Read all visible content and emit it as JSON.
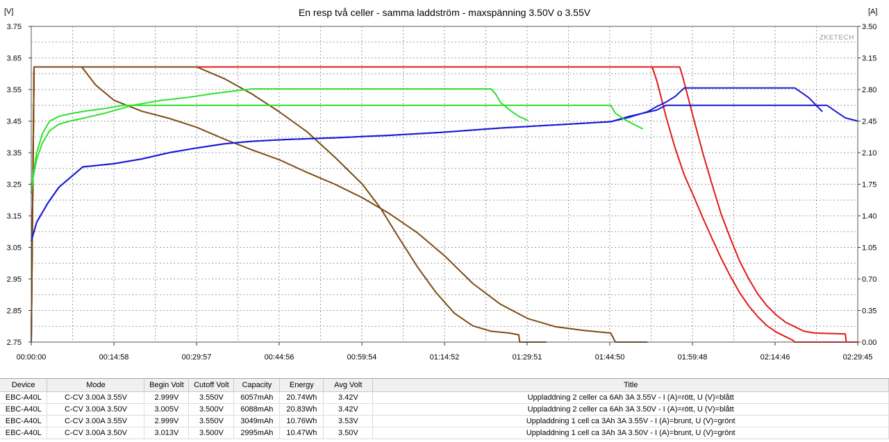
{
  "chart_data": {
    "type": "line",
    "title": "En resp två celler - samma laddström - maxspänning 3.50V o 3.55V",
    "y_left_unit": "[V]",
    "y_right_unit": "[A]",
    "watermark": "ZKETECH",
    "ylim_left": [
      2.75,
      3.75
    ],
    "ylim_right": [
      0,
      3.5
    ],
    "xlim_seconds": [
      0,
      8985
    ],
    "grid": true,
    "y_left_ticks": [
      "3.75",
      "3.65",
      "3.55",
      "3.45",
      "3.35",
      "3.25",
      "3.15",
      "3.05",
      "2.95",
      "2.85",
      "2.75"
    ],
    "y_right_ticks": [
      "3.50",
      "3.15",
      "2.80",
      "2.45",
      "2.10",
      "1.75",
      "1.40",
      "1.05",
      "0.70",
      "0.35",
      "0.00"
    ],
    "x_ticks": [
      "00:00:00",
      "00:14:58",
      "00:29:57",
      "00:44:56",
      "00:59:54",
      "01:14:52",
      "01:29:51",
      "01:44:50",
      "01:59:48",
      "02:14:46",
      "02:29:45"
    ],
    "series": [
      {
        "axis": "right",
        "color": "#e01818",
        "points": [
          [
            0,
            0
          ],
          [
            30,
            3.05
          ],
          [
            60,
            3.05
          ],
          [
            6750,
            3.05
          ],
          [
            6800,
            2.9
          ],
          [
            6900,
            2.5
          ],
          [
            7000,
            2.15
          ],
          [
            7100,
            1.85
          ],
          [
            7200,
            1.62
          ],
          [
            7300,
            1.38
          ],
          [
            7400,
            1.15
          ],
          [
            7500,
            0.93
          ],
          [
            7600,
            0.73
          ],
          [
            7700,
            0.55
          ],
          [
            7800,
            0.4
          ],
          [
            7900,
            0.28
          ],
          [
            8000,
            0.18
          ],
          [
            8100,
            0.11
          ],
          [
            8200,
            0.06
          ],
          [
            8280,
            0.02
          ],
          [
            8300,
            0.0
          ],
          [
            8850,
            0.0
          ]
        ]
      },
      {
        "axis": "right",
        "color": "#e01818",
        "points": [
          [
            0,
            0
          ],
          [
            30,
            3.05
          ],
          [
            60,
            3.05
          ],
          [
            7050,
            3.05
          ],
          [
            7080,
            2.95
          ],
          [
            7200,
            2.48
          ],
          [
            7300,
            2.1
          ],
          [
            7400,
            1.75
          ],
          [
            7500,
            1.42
          ],
          [
            7600,
            1.15
          ],
          [
            7700,
            0.9
          ],
          [
            7800,
            0.7
          ],
          [
            7900,
            0.53
          ],
          [
            8000,
            0.4
          ],
          [
            8100,
            0.3
          ],
          [
            8200,
            0.22
          ],
          [
            8300,
            0.17
          ],
          [
            8400,
            0.12
          ],
          [
            8520,
            0.1
          ],
          [
            8850,
            0.09
          ],
          [
            8860,
            0.0
          ],
          [
            8985,
            0.0
          ]
        ]
      },
      {
        "axis": "right",
        "color": "#7a4a12",
        "points": [
          [
            0,
            0
          ],
          [
            30,
            3.05
          ],
          [
            60,
            3.05
          ],
          [
            1800,
            3.05
          ],
          [
            2100,
            2.92
          ],
          [
            2400,
            2.75
          ],
          [
            2700,
            2.55
          ],
          [
            3000,
            2.33
          ],
          [
            3300,
            2.05
          ],
          [
            3600,
            1.75
          ],
          [
            3800,
            1.48
          ],
          [
            4000,
            1.15
          ],
          [
            4200,
            0.83
          ],
          [
            4400,
            0.55
          ],
          [
            4600,
            0.32
          ],
          [
            4800,
            0.18
          ],
          [
            5000,
            0.12
          ],
          [
            5200,
            0.1
          ],
          [
            5300,
            0.08
          ],
          [
            5310,
            0.0
          ],
          [
            5600,
            0.0
          ]
        ]
      },
      {
        "axis": "right",
        "color": "#7a4a12",
        "points": [
          [
            0,
            0
          ],
          [
            30,
            3.05
          ],
          [
            60,
            3.05
          ],
          [
            550,
            3.05
          ],
          [
            700,
            2.85
          ],
          [
            900,
            2.68
          ],
          [
            1200,
            2.56
          ],
          [
            1500,
            2.48
          ],
          [
            1800,
            2.38
          ],
          [
            2100,
            2.25
          ],
          [
            2400,
            2.13
          ],
          [
            2700,
            2.02
          ],
          [
            3000,
            1.88
          ],
          [
            3300,
            1.75
          ],
          [
            3600,
            1.6
          ],
          [
            3900,
            1.42
          ],
          [
            4200,
            1.21
          ],
          [
            4500,
            0.95
          ],
          [
            4800,
            0.65
          ],
          [
            5100,
            0.42
          ],
          [
            5400,
            0.26
          ],
          [
            5700,
            0.17
          ],
          [
            6000,
            0.13
          ],
          [
            6300,
            0.1
          ],
          [
            6350,
            0.0
          ],
          [
            6700,
            0.0
          ]
        ]
      },
      {
        "axis": "left",
        "color": "#1818d8",
        "points": [
          [
            0,
            3.07
          ],
          [
            60,
            3.13
          ],
          [
            180,
            3.19
          ],
          [
            300,
            3.24
          ],
          [
            420,
            3.27
          ],
          [
            560,
            3.305
          ],
          [
            900,
            3.315
          ],
          [
            1200,
            3.33
          ],
          [
            1500,
            3.35
          ],
          [
            1800,
            3.365
          ],
          [
            2100,
            3.378
          ],
          [
            2400,
            3.386
          ],
          [
            2800,
            3.392
          ],
          [
            3300,
            3.397
          ],
          [
            3900,
            3.405
          ],
          [
            4500,
            3.415
          ],
          [
            5100,
            3.428
          ],
          [
            5700,
            3.438
          ],
          [
            6300,
            3.448
          ],
          [
            6500,
            3.462
          ],
          [
            6700,
            3.48
          ],
          [
            6800,
            3.496
          ],
          [
            6900,
            3.51
          ],
          [
            7000,
            3.528
          ],
          [
            7100,
            3.555
          ],
          [
            8300,
            3.555
          ],
          [
            8450,
            3.525
          ],
          [
            8550,
            3.495
          ],
          [
            8600,
            3.48
          ]
        ]
      },
      {
        "axis": "left",
        "color": "#1818d8",
        "points": [
          [
            0,
            3.07
          ],
          [
            60,
            3.13
          ],
          [
            180,
            3.19
          ],
          [
            300,
            3.24
          ],
          [
            420,
            3.27
          ],
          [
            560,
            3.305
          ],
          [
            900,
            3.315
          ],
          [
            1200,
            3.33
          ],
          [
            1500,
            3.35
          ],
          [
            1800,
            3.365
          ],
          [
            2100,
            3.378
          ],
          [
            2400,
            3.386
          ],
          [
            2800,
            3.392
          ],
          [
            3300,
            3.397
          ],
          [
            3900,
            3.405
          ],
          [
            4500,
            3.415
          ],
          [
            5100,
            3.428
          ],
          [
            5700,
            3.438
          ],
          [
            6300,
            3.448
          ],
          [
            6500,
            3.465
          ],
          [
            6800,
            3.485
          ],
          [
            6900,
            3.5
          ],
          [
            8650,
            3.5
          ],
          [
            8750,
            3.48
          ],
          [
            8850,
            3.46
          ],
          [
            8985,
            3.45
          ]
        ]
      },
      {
        "axis": "left",
        "color": "#2ee02e",
        "points": [
          [
            0,
            3.22
          ],
          [
            20,
            3.27
          ],
          [
            60,
            3.33
          ],
          [
            120,
            3.38
          ],
          [
            200,
            3.42
          ],
          [
            300,
            3.44
          ],
          [
            420,
            3.45
          ],
          [
            550,
            3.458
          ],
          [
            800,
            3.475
          ],
          [
            1100,
            3.5
          ],
          [
            1400,
            3.515
          ],
          [
            1700,
            3.525
          ],
          [
            2000,
            3.538
          ],
          [
            2200,
            3.545
          ],
          [
            2400,
            3.552
          ],
          [
            5000,
            3.552
          ],
          [
            5050,
            3.535
          ],
          [
            5100,
            3.51
          ],
          [
            5200,
            3.485
          ],
          [
            5300,
            3.465
          ],
          [
            5400,
            3.452
          ]
        ]
      },
      {
        "axis": "left",
        "color": "#2ee02e",
        "points": [
          [
            0,
            3.22
          ],
          [
            20,
            3.28
          ],
          [
            60,
            3.35
          ],
          [
            120,
            3.41
          ],
          [
            200,
            3.45
          ],
          [
            300,
            3.465
          ],
          [
            450,
            3.475
          ],
          [
            600,
            3.482
          ],
          [
            800,
            3.49
          ],
          [
            1000,
            3.5
          ],
          [
            6300,
            3.5
          ],
          [
            6350,
            3.475
          ],
          [
            6450,
            3.455
          ],
          [
            6550,
            3.44
          ],
          [
            6650,
            3.425
          ]
        ]
      }
    ]
  },
  "table": {
    "headers": [
      "Device",
      "Mode",
      "Begin Volt",
      "Cutoff Volt",
      "Capacity",
      "Energy",
      "Avg Volt",
      "Title"
    ],
    "rows": [
      [
        "EBC-A40L",
        "C-CV  3.00A  3.55V",
        "2.999V",
        "3.550V",
        "6057mAh",
        "20.74Wh",
        "3.42V",
        "Uppladdning 2 celler ca 6Ah 3A 3.55V - I (A)=rött, U (V)=blått"
      ],
      [
        "EBC-A40L",
        "C-CV  3.00A  3.50V",
        "3.005V",
        "3.500V",
        "6088mAh",
        "20.83Wh",
        "3.42V",
        "Uppladdning 2 celler ca 6Ah 3A 3.50V - I (A)=rött, U (V)=blått"
      ],
      [
        "EBC-A40L",
        "C-CV  3.00A  3.55V",
        "2.999V",
        "3.550V",
        "3049mAh",
        "10.76Wh",
        "3.53V",
        "Uppladdning 1 cell ca 3Ah 3A 3.55V - I (A)=brunt, U (V)=grönt"
      ],
      [
        "EBC-A40L",
        "C-CV  3.00A  3.50V",
        "3.013V",
        "3.500V",
        "2995mAh",
        "10.47Wh",
        "3.50V",
        "Uppladdning 1 cell ca 3Ah 3A 3.50V - I (A)=brunt, U (V)=grönt"
      ]
    ]
  }
}
